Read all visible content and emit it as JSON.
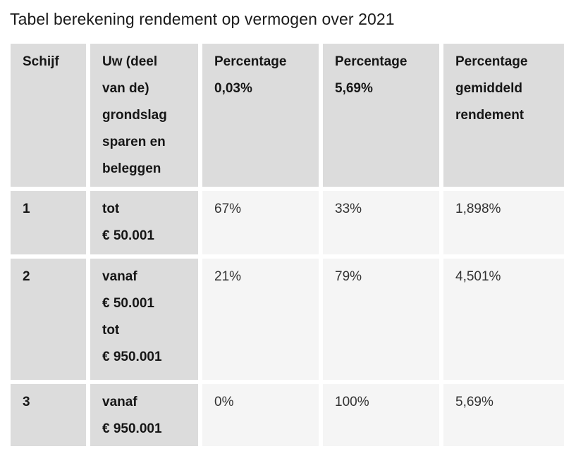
{
  "page": {
    "title": "Tabel berekening rendement op vermogen over 2021"
  },
  "colors": {
    "header_cell_bg": "#dcdcdc",
    "value_cell_bg": "#f5f5f5",
    "gutter": "#ffffff",
    "text": "#1a1a1a"
  },
  "table": {
    "headers": [
      "Schijf",
      "Uw (deel\nvan de)\ngrondslag\nsparen en\nbeleggen",
      "Percentage\n0,03%",
      "Percentage\n5,69%",
      "Percentage\ngemiddeld\nrendement"
    ],
    "rows": [
      {
        "cells": [
          "1",
          "tot\n€ 50.001",
          "67%",
          "33%",
          "1,898%"
        ]
      },
      {
        "cells": [
          "2",
          "vanaf\n€ 50.001\ntot\n€ 950.001",
          "21%",
          "79%",
          "4,501%"
        ]
      },
      {
        "cells": [
          "3",
          "vanaf\n€ 950.001",
          "0%",
          "100%",
          "5,69%"
        ]
      }
    ]
  },
  "chart_data": {
    "type": "table",
    "title": "Tabel berekening rendement op vermogen over 2021",
    "columns": [
      "Schijf",
      "Uw (deel van de) grondslag sparen en beleggen",
      "Percentage 0,03%",
      "Percentage 5,69%",
      "Percentage gemiddeld rendement"
    ],
    "rows": [
      [
        "1",
        "tot € 50.001",
        "67%",
        "33%",
        "1,898%"
      ],
      [
        "2",
        "vanaf € 50.001 tot € 950.001",
        "21%",
        "79%",
        "4,501%"
      ],
      [
        "3",
        "vanaf € 950.001",
        "0%",
        "100%",
        "5,69%"
      ]
    ]
  }
}
